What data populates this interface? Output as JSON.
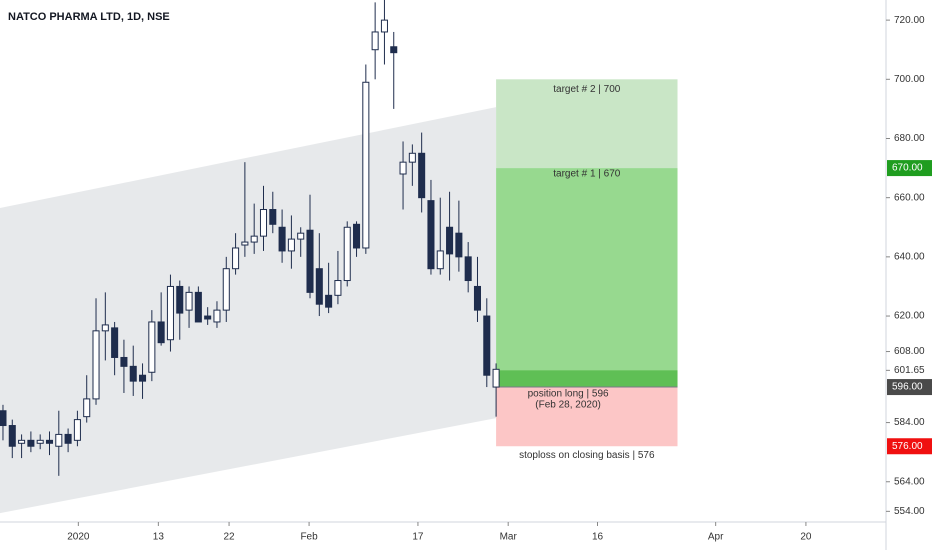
{
  "chart_data": {
    "type": "candlestick",
    "title": "NATCO PHARMA LTD, 1D, NSE",
    "up_color": "#ffffff",
    "down_color": "#1f2d4d",
    "open": [
      588,
      583,
      577,
      578,
      577,
      578,
      576,
      580,
      578,
      586,
      592,
      615,
      616,
      606,
      603,
      600,
      601,
      618,
      612,
      630,
      622,
      628,
      620,
      618,
      622,
      636,
      644,
      645,
      647,
      656,
      650,
      642,
      646,
      649,
      636,
      627,
      627,
      632,
      651,
      643,
      710,
      716,
      711,
      668,
      672,
      675,
      659,
      636,
      650,
      648,
      640,
      630,
      620,
      596
    ],
    "high": [
      590,
      585,
      580,
      581,
      580,
      581,
      588,
      582,
      588,
      600,
      626,
      628,
      618,
      612,
      610,
      604,
      622,
      628,
      634,
      632,
      630,
      630,
      623,
      625,
      640,
      648,
      672,
      658,
      664,
      662,
      656,
      654,
      650,
      661,
      648,
      638,
      642,
      652,
      652,
      705,
      726,
      727,
      716,
      679,
      678,
      682,
      666,
      660,
      662,
      659,
      645,
      640,
      626,
      604
    ],
    "low": [
      578,
      572,
      572,
      574,
      575,
      573,
      566,
      574,
      576,
      584,
      590,
      605,
      600,
      594,
      593,
      592,
      598,
      610,
      608,
      612,
      616,
      618,
      617,
      616,
      618,
      634,
      640,
      641,
      642,
      648,
      638,
      636,
      640,
      626,
      620,
      621,
      624,
      630,
      640,
      641,
      700,
      705,
      690,
      656,
      664,
      655,
      634,
      634,
      632,
      635,
      628,
      618,
      596,
      586
    ],
    "close": [
      583,
      576,
      578,
      576,
      578,
      577,
      580,
      577,
      585,
      592,
      615,
      617,
      606,
      603,
      598,
      598,
      618,
      611,
      630,
      621,
      628,
      618,
      619,
      622,
      636,
      643,
      645,
      647,
      656,
      651,
      642,
      646,
      648,
      628,
      624,
      623,
      632,
      650,
      643,
      699,
      716,
      720,
      709,
      672,
      675,
      660,
      636,
      642,
      641,
      640,
      632,
      622,
      600,
      602
    ],
    "xlim": [
      -0.32,
      94.8
    ],
    "xticks": [
      {
        "value": 8.1,
        "label": "2020"
      },
      {
        "value": 16.7,
        "label": "13"
      },
      {
        "value": 24.3,
        "label": "22"
      },
      {
        "value": 32.9,
        "label": "Feb"
      },
      {
        "value": 44.6,
        "label": "17"
      },
      {
        "value": 54.3,
        "label": "Mar"
      },
      {
        "value": 63.9,
        "label": "16"
      },
      {
        "value": 76.6,
        "label": "Apr"
      },
      {
        "value": 86.3,
        "label": "20"
      }
    ],
    "ylim": [
      550.4,
      726.8
    ],
    "yticks": [
      {
        "value": 554,
        "label": "554.00"
      },
      {
        "value": 564,
        "label": "564.00"
      },
      {
        "value": 584,
        "label": "584.00"
      },
      {
        "value": 608,
        "label": "608.00"
      },
      {
        "value": 620,
        "label": "620.00"
      },
      {
        "value": 640,
        "label": "640.00"
      },
      {
        "value": 660,
        "label": "660.00"
      },
      {
        "value": 680,
        "label": "680.00"
      },
      {
        "value": 700,
        "label": "700.00"
      },
      {
        "value": 720,
        "label": "720.00"
      }
    ],
    "last_price": 601.65,
    "price_labels": [
      {
        "value": 670,
        "label": "670.00",
        "color": "#1f9d1f"
      },
      {
        "value": 596,
        "label": "596.00",
        "color": "#4a4a4a"
      },
      {
        "value": 576,
        "label": "576.00",
        "color": "#f01010"
      }
    ],
    "channel": {
      "x": [
        -0.32,
        53
      ],
      "upper": [
        656.5,
        690.6
      ],
      "lower": [
        553.4,
        585.5
      ],
      "color": "#e3e5e8"
    },
    "position": {
      "x": [
        53,
        72.5
      ],
      "entry": 596,
      "target1": 670,
      "target2": 700,
      "stop": 576,
      "target2_label": "target # 2 | 700",
      "target1_label": "target # 1 | 670",
      "entry_label": "position long | 596",
      "date_label": "(Feb 28, 2020)",
      "stop_label": "stoploss on closing basis | 576"
    }
  }
}
